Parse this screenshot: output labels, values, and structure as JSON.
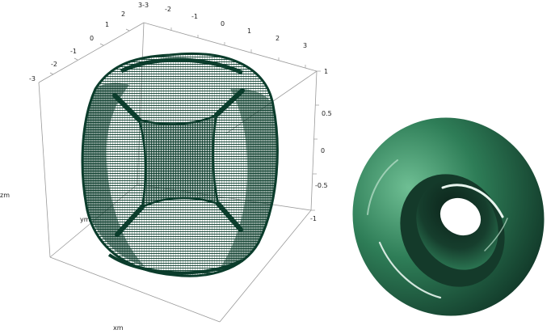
{
  "left_plot": {
    "axis_x_label": "xm",
    "axis_y_label": "ym",
    "axis_z_label": "zm",
    "top_ticks": [
      "-2",
      "-1",
      "0",
      "1",
      "2",
      "3"
    ],
    "left_ticks": [
      "2",
      "1",
      "0",
      "-1",
      "-2",
      "-3"
    ],
    "corner_tick": "3-3",
    "z_ticks": [
      "1",
      "0.5",
      "0",
      "-0.5",
      "-1"
    ],
    "mesh_color": "#0b3d2c"
  },
  "right_plot": {
    "surface_color": "#2e7d57",
    "highlight_color": "#e8f5ee"
  }
}
